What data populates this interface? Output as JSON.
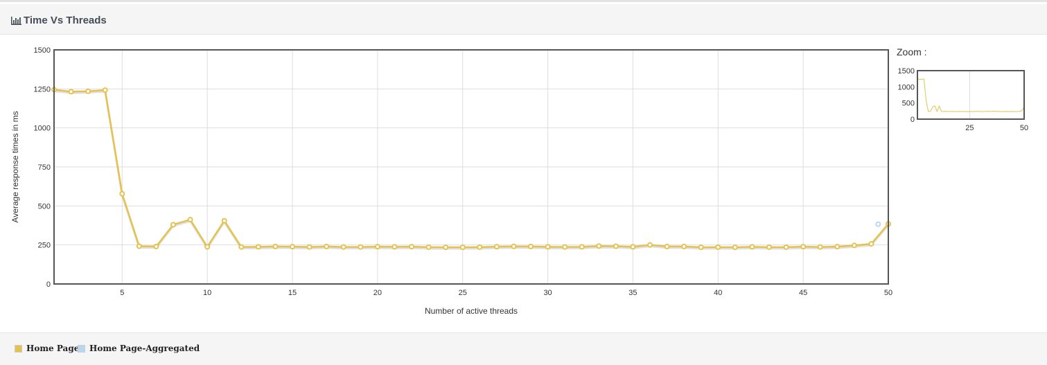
{
  "header": {
    "title": "Time Vs Threads",
    "icon": "bar-chart-icon"
  },
  "zoom": {
    "label": "Zoom :"
  },
  "colors": {
    "home_page": "#e5c24f",
    "home_page_aggregated": "#b9d6f2",
    "frame": "#555555",
    "grid": "#dddddd"
  },
  "legend": [
    {
      "label": "Home Page",
      "color": "#e5c24f"
    },
    {
      "label": "Home Page-Aggregated",
      "color": "#b9d6f2"
    }
  ],
  "chart_data": {
    "type": "line",
    "title": "",
    "xlabel": "Number of active threads",
    "ylabel": "Average response times in ms",
    "xlim": [
      1,
      50
    ],
    "ylim": [
      0,
      1500
    ],
    "xticks": [
      5,
      10,
      15,
      20,
      25,
      30,
      35,
      40,
      45,
      50
    ],
    "yticks": [
      0,
      250,
      500,
      750,
      1000,
      1250,
      1500
    ],
    "grid": true,
    "legend_position": "bottom",
    "series": [
      {
        "name": "Home Page",
        "x": [
          1,
          2,
          3,
          4,
          5,
          6,
          7,
          8,
          9,
          10,
          11,
          12,
          13,
          14,
          15,
          16,
          17,
          18,
          19,
          20,
          21,
          22,
          23,
          24,
          25,
          26,
          27,
          28,
          29,
          30,
          31,
          32,
          33,
          34,
          35,
          36,
          37,
          38,
          39,
          40,
          41,
          42,
          43,
          44,
          45,
          46,
          47,
          48,
          49,
          50
        ],
        "values": [
          1245,
          1232,
          1235,
          1242,
          578,
          242,
          240,
          380,
          412,
          238,
          405,
          237,
          238,
          240,
          239,
          237,
          240,
          237,
          237,
          239,
          238,
          239,
          236,
          235,
          235,
          236,
          239,
          241,
          240,
          238,
          237,
          238,
          243,
          242,
          238,
          250,
          240,
          240,
          235,
          236,
          235,
          238,
          236,
          236,
          239,
          237,
          239,
          247,
          257,
          385
        ]
      },
      {
        "name": "Home Page-Aggregated",
        "x": [
          49.4
        ],
        "values": [
          383
        ]
      }
    ],
    "zoom_overview": {
      "xticks": [
        25,
        50
      ],
      "yticks": [
        0,
        500,
        1000,
        1500
      ]
    }
  }
}
